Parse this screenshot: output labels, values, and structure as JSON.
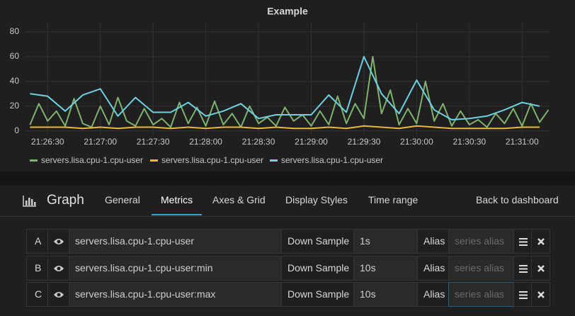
{
  "chart_data": {
    "type": "line",
    "title": "Example",
    "ylim": [
      -3,
      88
    ],
    "yticks": [
      0,
      20,
      40,
      60,
      80
    ],
    "xlim": [
      "21:26:17",
      "21:31:16"
    ],
    "xticks": [
      "21:26:30",
      "21:27:00",
      "21:27:30",
      "21:28:00",
      "21:28:30",
      "21:29:00",
      "21:29:30",
      "21:30:00",
      "21:30:30",
      "21:31:00"
    ],
    "grid": true,
    "legend": "bottom",
    "series": [
      {
        "name": "servers.lisa.cpu-1.cpu-user",
        "color": "#7eb26d",
        "x": [
          "21:26:20",
          "21:26:25",
          "21:26:30",
          "21:26:35",
          "21:26:40",
          "21:26:45",
          "21:26:50",
          "21:26:55",
          "21:27:00",
          "21:27:05",
          "21:27:10",
          "21:27:15",
          "21:27:20",
          "21:27:25",
          "21:27:30",
          "21:27:35",
          "21:27:40",
          "21:27:45",
          "21:27:50",
          "21:27:55",
          "21:28:00",
          "21:28:05",
          "21:28:10",
          "21:28:15",
          "21:28:20",
          "21:28:25",
          "21:28:30",
          "21:28:35",
          "21:28:40",
          "21:28:45",
          "21:28:50",
          "21:28:55",
          "21:29:00",
          "21:29:05",
          "21:29:10",
          "21:29:15",
          "21:29:20",
          "21:29:25",
          "21:29:30",
          "21:29:35",
          "21:29:40",
          "21:29:45",
          "21:29:50",
          "21:29:55",
          "21:30:00",
          "21:30:05",
          "21:30:10",
          "21:30:15",
          "21:30:20",
          "21:30:25",
          "21:30:30",
          "21:30:35",
          "21:30:40",
          "21:30:45",
          "21:30:50",
          "21:30:55",
          "21:31:00",
          "21:31:05",
          "21:31:10",
          "21:31:15"
        ],
        "values": [
          5,
          22,
          8,
          16,
          4,
          26,
          6,
          3,
          20,
          5,
          27,
          8,
          4,
          18,
          5,
          10,
          3,
          23,
          6,
          19,
          4,
          24,
          5,
          14,
          3,
          20,
          6,
          11,
          4,
          19,
          8,
          13,
          4,
          16,
          5,
          28,
          6,
          22,
          10,
          60,
          14,
          33,
          5,
          18,
          6,
          40,
          8,
          22,
          4,
          16,
          5,
          9,
          3,
          14,
          6,
          18,
          4,
          22,
          7,
          17
        ]
      },
      {
        "name": "servers.lisa.cpu-1.cpu-user",
        "color": "#eab839",
        "x": [
          "21:26:20",
          "21:26:30",
          "21:26:40",
          "21:26:50",
          "21:27:00",
          "21:27:10",
          "21:27:20",
          "21:27:30",
          "21:27:40",
          "21:27:50",
          "21:28:00",
          "21:28:10",
          "21:28:20",
          "21:28:30",
          "21:28:40",
          "21:28:50",
          "21:29:00",
          "21:29:10",
          "21:29:20",
          "21:29:30",
          "21:29:40",
          "21:29:50",
          "21:30:00",
          "21:30:10",
          "21:30:20",
          "21:30:30",
          "21:30:40",
          "21:30:50",
          "21:31:00",
          "21:31:10"
        ],
        "values": [
          3,
          3,
          3,
          2,
          3,
          2,
          3,
          3,
          2,
          3,
          2,
          3,
          3,
          2,
          3,
          2,
          2,
          3,
          2,
          4,
          3,
          2,
          4,
          3,
          2,
          2,
          2,
          2,
          3,
          3
        ]
      },
      {
        "name": "servers.lisa.cpu-1.cpu-user",
        "color": "#6ed0e0",
        "x": [
          "21:26:20",
          "21:26:30",
          "21:26:40",
          "21:26:50",
          "21:27:00",
          "21:27:10",
          "21:27:20",
          "21:27:30",
          "21:27:40",
          "21:27:50",
          "21:28:00",
          "21:28:10",
          "21:28:20",
          "21:28:30",
          "21:28:40",
          "21:28:50",
          "21:29:00",
          "21:29:10",
          "21:29:20",
          "21:29:30",
          "21:29:40",
          "21:29:50",
          "21:30:00",
          "21:30:10",
          "21:30:20",
          "21:30:30",
          "21:30:40",
          "21:30:50",
          "21:31:00",
          "21:31:10"
        ],
        "values": [
          30,
          28,
          16,
          29,
          34,
          12,
          27,
          15,
          15,
          23,
          12,
          16,
          22,
          10,
          13,
          13,
          13,
          29,
          15,
          60,
          30,
          14,
          41,
          17,
          9,
          10,
          12,
          17,
          23,
          20
        ]
      }
    ]
  },
  "panel": {
    "title": "Graph",
    "tabs": [
      "General",
      "Metrics",
      "Axes & Grid",
      "Display Styles",
      "Time range"
    ],
    "back": "Back to dashboard",
    "rows": [
      {
        "letter": "A",
        "target": "servers.lisa.cpu-1.cpu-user",
        "sample_label": "Down Sample",
        "sample": "1s",
        "alias_label": "Alias",
        "alias_placeholder": "series alias"
      },
      {
        "letter": "B",
        "target": "servers.lisa.cpu-1.cpu-user:min",
        "sample_label": "Down Sample",
        "sample": "10s",
        "alias_label": "Alias",
        "alias_placeholder": "series alias"
      },
      {
        "letter": "C",
        "target": "servers.lisa.cpu-1.cpu-user:max",
        "sample_label": "Down Sample",
        "sample": "10s",
        "alias_label": "Alias",
        "alias_placeholder": "series alias"
      }
    ]
  }
}
